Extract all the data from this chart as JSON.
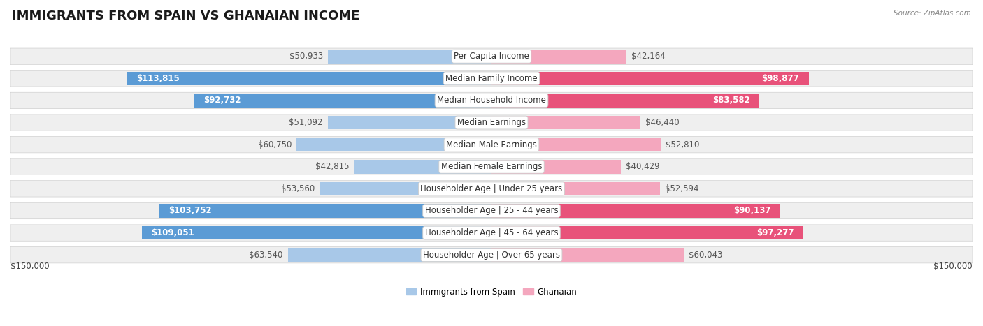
{
  "title": "IMMIGRANTS FROM SPAIN VS GHANAIAN INCOME",
  "source": "Source: ZipAtlas.com",
  "categories": [
    "Per Capita Income",
    "Median Family Income",
    "Median Household Income",
    "Median Earnings",
    "Median Male Earnings",
    "Median Female Earnings",
    "Householder Age | Under 25 years",
    "Householder Age | 25 - 44 years",
    "Householder Age | 45 - 64 years",
    "Householder Age | Over 65 years"
  ],
  "spain_values": [
    50933,
    113815,
    92732,
    51092,
    60750,
    42815,
    53560,
    103752,
    109051,
    63540
  ],
  "ghana_values": [
    42164,
    98877,
    83582,
    46440,
    52810,
    40429,
    52594,
    90137,
    97277,
    60043
  ],
  "spain_color_light": "#a8c8e8",
  "spain_color_dark": "#5b9bd5",
  "ghana_color_light": "#f4a7be",
  "ghana_color_dark": "#e8527a",
  "label_color_dark": "#555555",
  "label_color_light": "#ffffff",
  "background_color": "#ffffff",
  "row_bg_color": "#efefef",
  "row_border_color": "#d0d0d0",
  "max_value": 150000,
  "legend_spain": "Immigrants from Spain",
  "legend_ghana": "Ghanaian",
  "xlabel_left": "$150,000",
  "xlabel_right": "$150,000",
  "spain_label_threshold": 80000,
  "ghana_label_threshold": 80000,
  "title_fontsize": 13,
  "label_fontsize": 8.5,
  "category_fontsize": 8.5
}
